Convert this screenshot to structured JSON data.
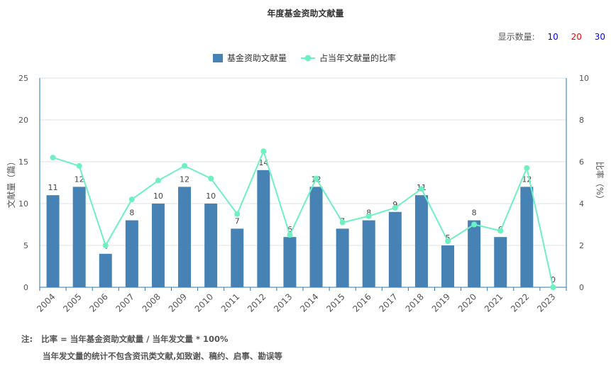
{
  "chart_data": {
    "type": "bar+line",
    "title": "年度基金资助文献量",
    "categories": [
      "2004",
      "2005",
      "2006",
      "2007",
      "2008",
      "2009",
      "2010",
      "2011",
      "2012",
      "2013",
      "2014",
      "2015",
      "2016",
      "2017",
      "2018",
      "2019",
      "2020",
      "2021",
      "2022",
      "2023"
    ],
    "series": [
      {
        "name": "基金资助文献量",
        "type": "bar",
        "axis": "left",
        "color": "#4682b4",
        "values": [
          11,
          12,
          4,
          8,
          10,
          12,
          10,
          7,
          14,
          6,
          12,
          7,
          8,
          9,
          11,
          5,
          8,
          6,
          12,
          0
        ]
      },
      {
        "name": "占当年文献量的比率",
        "type": "line",
        "axis": "right",
        "color": "#6ef0c0",
        "values": [
          6.2,
          5.8,
          2.0,
          4.2,
          5.1,
          5.8,
          5.2,
          3.5,
          6.5,
          2.5,
          5.2,
          3.1,
          3.4,
          3.8,
          4.7,
          2.2,
          3.0,
          2.7,
          5.7,
          0
        ]
      }
    ],
    "ylabel": "文献量（篇）",
    "y2label": "比率（%）",
    "ylim": [
      0,
      25
    ],
    "yticks": [
      0,
      5,
      10,
      15,
      20,
      25
    ],
    "y2lim": [
      0,
      10
    ],
    "y2ticks": [
      0,
      2,
      4,
      6,
      8,
      10
    ],
    "legend_position": "top-center",
    "grid": true
  },
  "count_selector": {
    "label": "显示数量:",
    "options": [
      {
        "text": "10",
        "color": "#0000ff"
      },
      {
        "text": "20",
        "color": "#ff0000"
      },
      {
        "text": "30",
        "color": "#0000ff"
      }
    ]
  },
  "notes": {
    "prefix": "注:",
    "line1": "比率 = 当年基金资助文献量 / 当年发文量 * 100%",
    "line2": "当年发文量的统计不包含资讯类文献,如致谢、稿约、启事、勘误等"
  }
}
